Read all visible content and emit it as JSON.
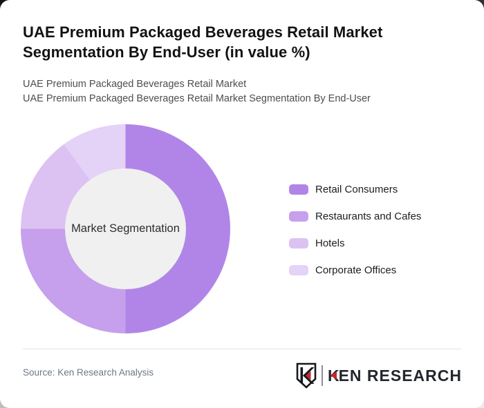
{
  "card": {
    "title_line1": "UAE Premium Packaged Beverages Retail Market",
    "title_line2": "Segmentation By End-User (in value %)",
    "subtitle_line1": "UAE Premium Packaged Beverages Retail Market",
    "subtitle_line2": "UAE Premium Packaged Beverages Retail Market Segmentation By End-User"
  },
  "chart_data": {
    "type": "pie",
    "style": "donut",
    "title": "UAE Premium Packaged Beverages Retail Market Segmentation By End-User (in value %)",
    "center_label": "Market Segmentation",
    "categories": [
      "Retail Consumers",
      "Restaurants and Cafes",
      "Hotels",
      "Corporate Offices"
    ],
    "values": [
      50,
      25,
      15,
      10
    ],
    "unit": "percent",
    "colors": [
      "#b185e8",
      "#c6a0ec",
      "#dcc2f3",
      "#e5d2f7"
    ],
    "start_angle_deg": 0,
    "direction": "clockwise",
    "inner_radius_ratio": 0.58,
    "center_fill": "#f0f0f0",
    "legend_position": "right",
    "data_labels": false,
    "grid": false
  },
  "footer": {
    "source": "Source: Ken Research Analysis",
    "brand": {
      "shield_letter": "K",
      "wordmark_first_letter": "K",
      "wordmark_rest": "EN RESEARCH",
      "accent_color": "#c5262c",
      "text_color": "#23272d"
    }
  }
}
